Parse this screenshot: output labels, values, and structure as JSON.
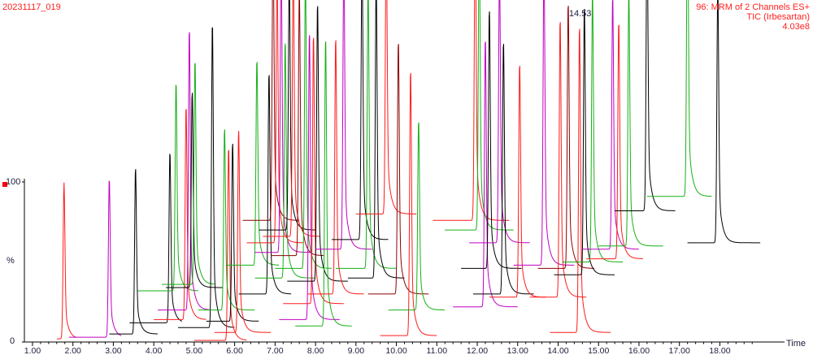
{
  "header": {
    "sample_id": "20231117_019",
    "function_label": "96: MRM of 2 Channels ES+",
    "trace_label": "TIC (Irbesartan)",
    "intensity": "4.03e8"
  },
  "annotations": {
    "top_peak_label": "14.53"
  },
  "colors": {
    "red": "#ff1a1a",
    "purple": "#c000c0",
    "black": "#000000",
    "green": "#16b016",
    "darkred": "#8b0000",
    "header": "#ff2020"
  },
  "chart_data": {
    "type": "line",
    "title": "",
    "xlabel": "Time",
    "ylabel": "%",
    "y_tick_labels": [
      "0",
      "100"
    ],
    "xlim": [
      0.8,
      19.6
    ],
    "ylim": [
      0,
      100
    ],
    "x_ticks": [
      1.0,
      2.0,
      3.0,
      4.0,
      5.0,
      6.0,
      7.0,
      8.0,
      9.0,
      10.0,
      11.0,
      12.0,
      13.0,
      14.0,
      15.0,
      16.0,
      17.0,
      18.0
    ],
    "x_tick_labels": [
      "1.00",
      "2.00",
      "3.00",
      "4.00",
      "5.00",
      "6.00",
      "7.00",
      "8.00",
      "9.00",
      "10.00",
      "11.00",
      "12.00",
      "13.00",
      "14.00",
      "15.00",
      "16.00",
      "17.00",
      "18.00"
    ],
    "series": [
      {
        "color": "red",
        "rt": 1.78,
        "start": 1.6,
        "end": 2.1,
        "base": 2,
        "height": 98
      },
      {
        "color": "purple",
        "rt": 2.9,
        "start": 1.9,
        "end": 3.2,
        "base": 3,
        "height": 100
      },
      {
        "color": "black",
        "rt": 3.55,
        "start": 2.9,
        "end": 4.1,
        "base": 5,
        "height": 105
      },
      {
        "color": "black",
        "rt": 4.4,
        "start": 3.4,
        "end": 4.7,
        "base": 12,
        "height": 108
      },
      {
        "color": "green",
        "rt": 4.55,
        "start": 3.6,
        "end": 5.1,
        "base": 32,
        "height": 132
      },
      {
        "color": "red",
        "rt": 4.8,
        "start": 4.0,
        "end": 5.3,
        "base": 14,
        "height": 135
      },
      {
        "color": "purple",
        "rt": 4.88,
        "start": 4.1,
        "end": 5.4,
        "base": 20,
        "height": 178
      },
      {
        "color": "black",
        "rt": 4.95,
        "start": 4.3,
        "end": 5.7,
        "base": 34,
        "height": 124
      },
      {
        "color": "green",
        "rt": 5.02,
        "start": 4.2,
        "end": 5.5,
        "base": 36,
        "height": 142
      },
      {
        "color": "black",
        "rt": 5.45,
        "start": 4.6,
        "end": 6.0,
        "base": 9,
        "height": 193
      },
      {
        "color": "red",
        "rt": 5.85,
        "start": 5.0,
        "end": 6.3,
        "base": 1,
        "height": 122
      },
      {
        "color": "green",
        "rt": 5.75,
        "start": 5.1,
        "end": 6.5,
        "base": 20,
        "height": 115
      },
      {
        "color": "black",
        "rt": 5.95,
        "start": 5.3,
        "end": 6.6,
        "base": 13,
        "height": 113
      },
      {
        "color": "red",
        "rt": 6.1,
        "start": 5.5,
        "end": 6.9,
        "base": 6,
        "height": 128
      },
      {
        "color": "green",
        "rt": 6.55,
        "start": 5.8,
        "end": 7.1,
        "base": 48,
        "height": 130
      },
      {
        "color": "black",
        "rt": 6.85,
        "start": 6.1,
        "end": 7.4,
        "base": 30,
        "height": 140
      },
      {
        "color": "darkred",
        "rt": 6.95,
        "start": 6.2,
        "end": 7.6,
        "base": 76,
        "height": 180
      },
      {
        "color": "red",
        "rt": 7.05,
        "start": 6.3,
        "end": 7.7,
        "base": 62,
        "height": 175
      },
      {
        "color": "purple",
        "rt": 7.15,
        "start": 6.5,
        "end": 7.9,
        "base": 56,
        "height": 188
      },
      {
        "color": "green",
        "rt": 7.25,
        "start": 6.5,
        "end": 8.0,
        "base": 40,
        "height": 150
      },
      {
        "color": "black",
        "rt": 7.35,
        "start": 6.6,
        "end": 8.0,
        "base": 70,
        "height": 160
      },
      {
        "color": "red",
        "rt": 7.45,
        "start": 6.7,
        "end": 8.1,
        "base": 66,
        "height": 172
      },
      {
        "color": "darkred",
        "rt": 7.6,
        "start": 6.9,
        "end": 8.2,
        "base": 54,
        "height": 168
      },
      {
        "color": "green",
        "rt": 7.75,
        "start": 7.0,
        "end": 8.4,
        "base": 46,
        "height": 186
      },
      {
        "color": "purple",
        "rt": 7.85,
        "start": 7.1,
        "end": 8.6,
        "base": 14,
        "height": 182
      },
      {
        "color": "red",
        "rt": 7.95,
        "start": 7.2,
        "end": 8.7,
        "base": 24,
        "height": 170
      },
      {
        "color": "black",
        "rt": 8.05,
        "start": 7.3,
        "end": 8.8,
        "base": 38,
        "height": 176
      },
      {
        "color": "green",
        "rt": 8.25,
        "start": 7.5,
        "end": 8.9,
        "base": 10,
        "height": 182
      },
      {
        "color": "red",
        "rt": 8.5,
        "start": 7.8,
        "end": 9.2,
        "base": 30,
        "height": 162
      },
      {
        "color": "purple",
        "rt": 8.7,
        "start": 8.0,
        "end": 9.4,
        "base": 58,
        "height": 182
      },
      {
        "color": "black",
        "rt": 9.15,
        "start": 8.4,
        "end": 9.8,
        "base": 64,
        "height": 180
      },
      {
        "color": "green",
        "rt": 9.3,
        "start": 8.5,
        "end": 10.0,
        "base": 46,
        "height": 180
      },
      {
        "color": "black",
        "rt": 9.5,
        "start": 8.8,
        "end": 10.2,
        "base": 40,
        "height": 190
      },
      {
        "color": "red",
        "rt": 9.75,
        "start": 9.0,
        "end": 10.5,
        "base": 80,
        "height": 176
      },
      {
        "color": "darkred",
        "rt": 10.05,
        "start": 9.3,
        "end": 10.8,
        "base": 30,
        "height": 160
      },
      {
        "color": "red",
        "rt": 10.35,
        "start": 9.6,
        "end": 11.0,
        "base": 4,
        "height": 168
      },
      {
        "color": "green",
        "rt": 10.55,
        "start": 9.8,
        "end": 11.2,
        "base": 20,
        "height": 120
      },
      {
        "color": "red",
        "rt": 11.95,
        "start": 10.9,
        "end": 12.8,
        "base": 76,
        "height": 192
      },
      {
        "color": "green",
        "rt": 12.05,
        "start": 11.2,
        "end": 12.9,
        "base": 70,
        "height": 186
      },
      {
        "color": "purple",
        "rt": 12.2,
        "start": 11.4,
        "end": 13.0,
        "base": 22,
        "height": 170
      },
      {
        "color": "black",
        "rt": 12.3,
        "start": 11.6,
        "end": 13.1,
        "base": 46,
        "height": 164
      },
      {
        "color": "purple",
        "rt": 12.55,
        "start": 11.8,
        "end": 13.3,
        "base": 62,
        "height": 172
      },
      {
        "color": "black",
        "rt": 12.65,
        "start": 11.9,
        "end": 13.4,
        "base": 30,
        "height": 160
      },
      {
        "color": "red",
        "rt": 13.05,
        "start": 12.3,
        "end": 13.7,
        "base": 28,
        "height": 148
      },
      {
        "color": "purple",
        "rt": 13.65,
        "start": 12.9,
        "end": 14.4,
        "base": 48,
        "height": 192
      },
      {
        "color": "red",
        "rt": 14.05,
        "start": 13.3,
        "end": 14.7,
        "base": 28,
        "height": 176
      },
      {
        "color": "darkred",
        "rt": 14.25,
        "start": 13.5,
        "end": 14.9,
        "base": 46,
        "height": 168
      },
      {
        "color": "red",
        "rt": 14.53,
        "start": 13.8,
        "end": 15.3,
        "base": 6,
        "height": 194
      },
      {
        "color": "black",
        "rt": 14.65,
        "start": 13.9,
        "end": 15.4,
        "base": 42,
        "height": 170
      },
      {
        "color": "green",
        "rt": 14.85,
        "start": 14.1,
        "end": 15.6,
        "base": 50,
        "height": 170
      },
      {
        "color": "purple",
        "rt": 15.35,
        "start": 14.6,
        "end": 16.0,
        "base": 58,
        "height": 160
      },
      {
        "color": "red",
        "rt": 15.5,
        "start": 14.7,
        "end": 16.1,
        "base": 52,
        "height": 150
      },
      {
        "color": "green",
        "rt": 15.75,
        "start": 15.0,
        "end": 16.6,
        "base": 60,
        "height": 160
      },
      {
        "color": "black",
        "rt": 16.2,
        "start": 15.4,
        "end": 16.9,
        "base": 82,
        "height": 182
      },
      {
        "color": "green",
        "rt": 17.2,
        "start": 16.2,
        "end": 17.8,
        "base": 91,
        "height": 190
      },
      {
        "color": "black",
        "rt": 17.95,
        "start": 17.2,
        "end": 19.0,
        "base": 62,
        "height": 162
      }
    ]
  }
}
